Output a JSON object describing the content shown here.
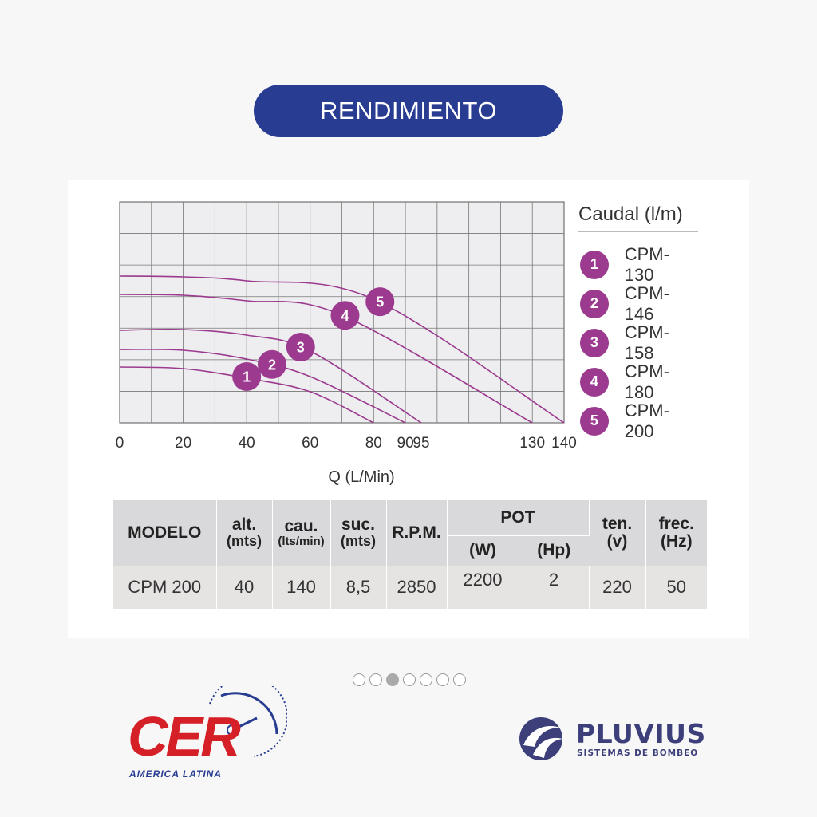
{
  "header": {
    "title": "RENDIMIENTO"
  },
  "chart_data": {
    "type": "line",
    "xlabel": "Q (L/Min)",
    "ylabel": "",
    "x_ticks": [
      0,
      20,
      40,
      60,
      80,
      90,
      95,
      130,
      140
    ],
    "xlim": [
      0,
      140
    ],
    "grid": true,
    "legend_placement": "right",
    "legend_title": "Caudal (l/m)",
    "series": [
      {
        "name": "CPM-130",
        "label": "1",
        "max_flow": 80,
        "curve": [
          [
            0,
            460
          ],
          [
            20,
            462
          ],
          [
            40,
            474
          ],
          [
            60,
            491
          ],
          [
            80,
            530
          ]
        ]
      },
      {
        "name": "CPM-146",
        "label": "2",
        "max_flow": 90,
        "curve": [
          [
            0,
            438
          ],
          [
            20,
            439
          ],
          [
            40,
            450
          ],
          [
            60,
            472
          ],
          [
            90,
            530
          ]
        ]
      },
      {
        "name": "CPM-158",
        "label": "3",
        "max_flow": 95,
        "curve": [
          [
            0,
            414
          ],
          [
            20,
            413
          ],
          [
            40,
            420
          ],
          [
            60,
            440
          ],
          [
            95,
            530
          ]
        ]
      },
      {
        "name": "CPM-180",
        "label": "4",
        "max_flow": 130,
        "curve": [
          [
            0,
            369
          ],
          [
            20,
            370
          ],
          [
            40,
            377
          ],
          [
            70,
            395
          ],
          [
            130,
            530
          ]
        ]
      },
      {
        "name": "CPM-200",
        "label": "5",
        "max_flow": 140,
        "curve": [
          [
            0,
            346
          ],
          [
            20,
            347
          ],
          [
            40,
            352
          ],
          [
            80,
            375
          ],
          [
            140,
            530
          ]
        ]
      }
    ],
    "badge_points": [
      {
        "label": "1",
        "q": 40
      },
      {
        "label": "2",
        "q": 48
      },
      {
        "label": "3",
        "q": 57
      },
      {
        "label": "4",
        "q": 71
      },
      {
        "label": "5",
        "q": 82
      }
    ]
  },
  "table": {
    "headers": {
      "modelo": "MODELO",
      "alt": "alt.",
      "alt_unit": "(mts)",
      "cau": "cau.",
      "cau_unit": "(lts/min)",
      "suc": "suc.",
      "suc_unit": "(mts)",
      "rpm": "R.P.M.",
      "pot": "POT",
      "pot_w": "(W)",
      "pot_hp": "(Hp)",
      "ten": "ten.",
      "ten_unit": "(v)",
      "frec": "frec.",
      "frec_unit": "(Hz)"
    },
    "row": {
      "modelo": "CPM 200",
      "alt": "40",
      "cau": "140",
      "suc": "8,5",
      "rpm": "2850",
      "pot_w": "2200",
      "pot_hp": "2",
      "ten": "220",
      "frec": "50"
    }
  },
  "pagination": {
    "total": 7,
    "active": 3
  },
  "logos": {
    "cer": {
      "text": "CER",
      "subtitle": "AMERICA LATINA"
    },
    "pluvius": {
      "name": "PLUVIUS",
      "subtitle": "SISTEMAS DE BOMBEO"
    }
  },
  "colors": {
    "accent": "#283c92",
    "curve": "#9b3a8f",
    "brand_red": "#d62027",
    "brand_pluvius": "#3c3f7a"
  }
}
